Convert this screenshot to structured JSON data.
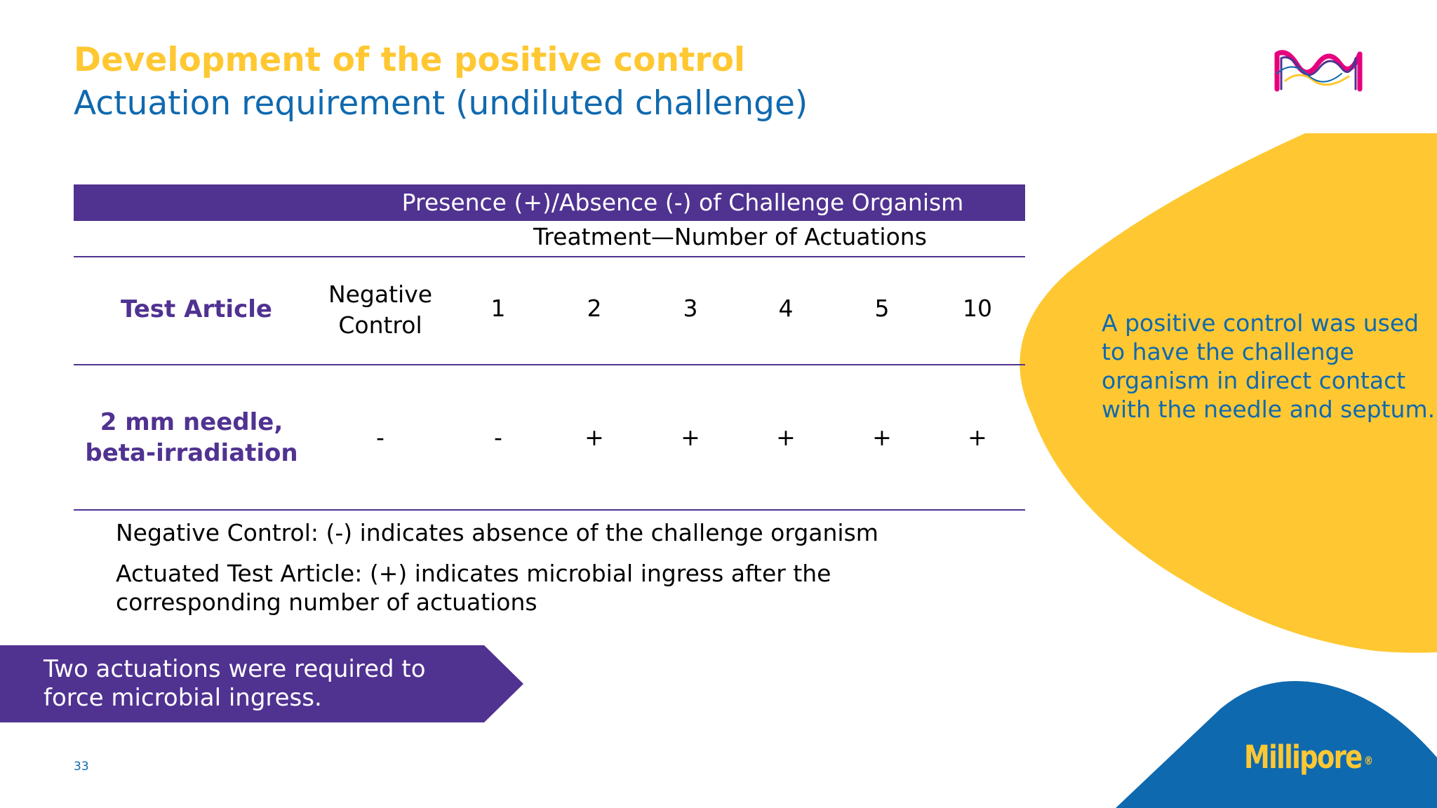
{
  "slide": {
    "title": "Development of the positive control",
    "subtitle": "Actuation requirement (undiluted challenge)",
    "page_number": "33"
  },
  "table": {
    "header": "Presence (+)/Absence (-) of Challenge Organism",
    "subheader": "Treatment—Number of Actuations",
    "columns": {
      "test_article": "Test Article",
      "negative_control": [
        "Negative",
        "Control"
      ],
      "actuations": [
        "1",
        "2",
        "3",
        "4",
        "5",
        "10"
      ]
    },
    "rows": [
      {
        "label": [
          "2 mm needle,",
          "beta-irradiation"
        ],
        "negative_control": "-",
        "values": [
          "-",
          "+",
          "+",
          "+",
          "+",
          "+"
        ]
      }
    ]
  },
  "notes": {
    "negative": "Negative Control: (-) indicates absence of the challenge organism",
    "actuated": "Actuated Test Article: (+) indicates microbial ingress after the corresponding number of actuations"
  },
  "callout": {
    "arrow_text": "Two actuations were required to force microbial ingress.",
    "side_text": "A positive control was used to have the challenge organism in direct contact with the needle and septum."
  },
  "brand": {
    "name": "Millipore",
    "registered": "®",
    "logo_icon": "m-logo-icon"
  },
  "colors": {
    "yellow": "#FFC832",
    "blue": "#0F69AF",
    "purple": "#503291"
  }
}
